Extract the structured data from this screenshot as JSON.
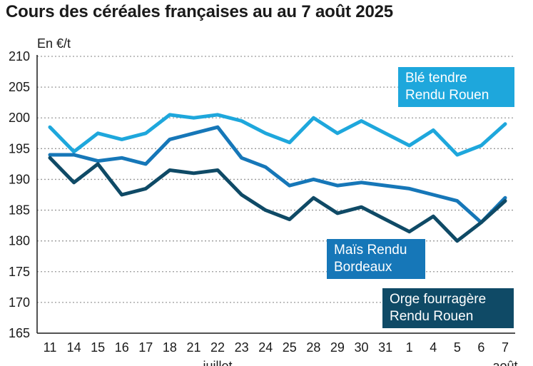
{
  "chart_data": {
    "type": "line",
    "title": "Cours des céréales françaises au au 7 août 2025",
    "ylabel": "En €/t",
    "ylim": [
      165,
      210
    ],
    "yticks": [
      165,
      170,
      175,
      180,
      185,
      190,
      195,
      200,
      205,
      210
    ],
    "categories": [
      "11",
      "14",
      "15",
      "16",
      "17",
      "18",
      "21",
      "22",
      "23",
      "24",
      "25",
      "28",
      "29",
      "30",
      "31",
      "1",
      "4",
      "5",
      "6",
      "7"
    ],
    "month_labels": [
      "juillet",
      "août"
    ],
    "grid": true,
    "series": [
      {
        "name": "Blé tendre Rendu Rouen",
        "label_lines": [
          "Blé tendre",
          "Rendu Rouen"
        ],
        "color": "#1ea7dc",
        "values": [
          198.5,
          194.5,
          197.5,
          196.5,
          197.5,
          200.5,
          200,
          200.5,
          199.5,
          197.5,
          196,
          200,
          197.5,
          199.5,
          197.5,
          195.5,
          198,
          194,
          195.5,
          199
        ]
      },
      {
        "name": "Maïs Rendu Bordeaux",
        "label_lines": [
          "Maïs Rendu",
          "Bordeaux"
        ],
        "color": "#1677b8",
        "values": [
          194,
          194,
          193,
          193.5,
          192.5,
          196.5,
          197.5,
          198.5,
          193.5,
          192,
          189,
          190,
          189,
          189.5,
          189,
          188.5,
          187.5,
          186.5,
          183,
          187
        ]
      },
      {
        "name": "Orge fourragère Rendu Rouen",
        "label_lines": [
          "Orge fourragère",
          "Rendu Rouen"
        ],
        "color": "#0f4a66",
        "values": [
          193.5,
          189.5,
          192.5,
          187.5,
          188.5,
          191.5,
          191,
          191.5,
          187.5,
          185,
          183.5,
          187,
          184.5,
          185.5,
          183.5,
          181.5,
          184,
          180,
          183,
          186.5
        ]
      }
    ]
  }
}
